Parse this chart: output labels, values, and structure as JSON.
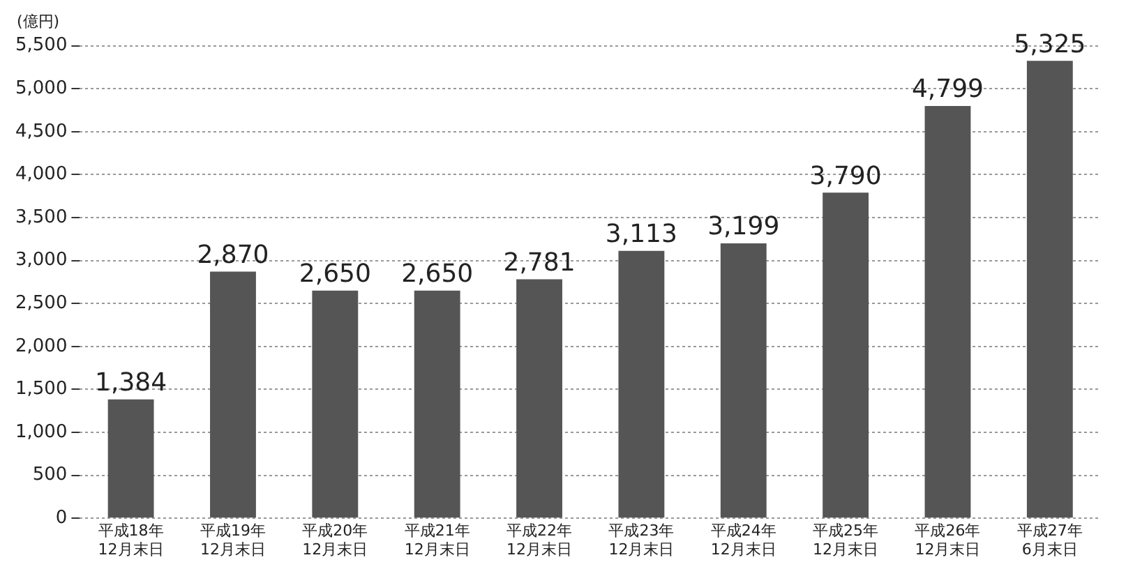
{
  "chart_data": {
    "type": "bar",
    "ylabel": "(億円)",
    "categories": [
      "平成18年\n12月末日",
      "平成19年\n12月末日",
      "平成20年\n12月末日",
      "平成21年\n12月末日",
      "平成22年\n12月末日",
      "平成23年\n12月末日",
      "平成24年\n12月末日",
      "平成25年\n12月末日",
      "平成26年\n12月末日",
      "平成27年\n6月末日"
    ],
    "values": [
      1384,
      2870,
      2650,
      2650,
      2781,
      3113,
      3199,
      3790,
      4799,
      5325
    ],
    "value_labels": [
      "1,384",
      "2,870",
      "2,650",
      "2,650",
      "2,781",
      "3,113",
      "3,199",
      "3,790",
      "4,799",
      "5,325"
    ],
    "color": "#555555",
    "ylim": [
      0,
      5500
    ],
    "yticks": [
      {
        "value": 0,
        "label": "0"
      },
      {
        "value": 500,
        "label": "500"
      },
      {
        "value": 1000,
        "label": "1,000"
      },
      {
        "value": 1500,
        "label": "1,500"
      },
      {
        "value": 2000,
        "label": "2,000"
      },
      {
        "value": 2500,
        "label": "2,500"
      },
      {
        "value": 3000,
        "label": "3,000"
      },
      {
        "value": 3500,
        "label": "3,500"
      },
      {
        "value": 4000,
        "label": "4,000"
      },
      {
        "value": 4500,
        "label": "4,500"
      },
      {
        "value": 5000,
        "label": "5,000"
      },
      {
        "value": 5500,
        "label": "5,500"
      }
    ],
    "grid": "y",
    "legend": false
  }
}
